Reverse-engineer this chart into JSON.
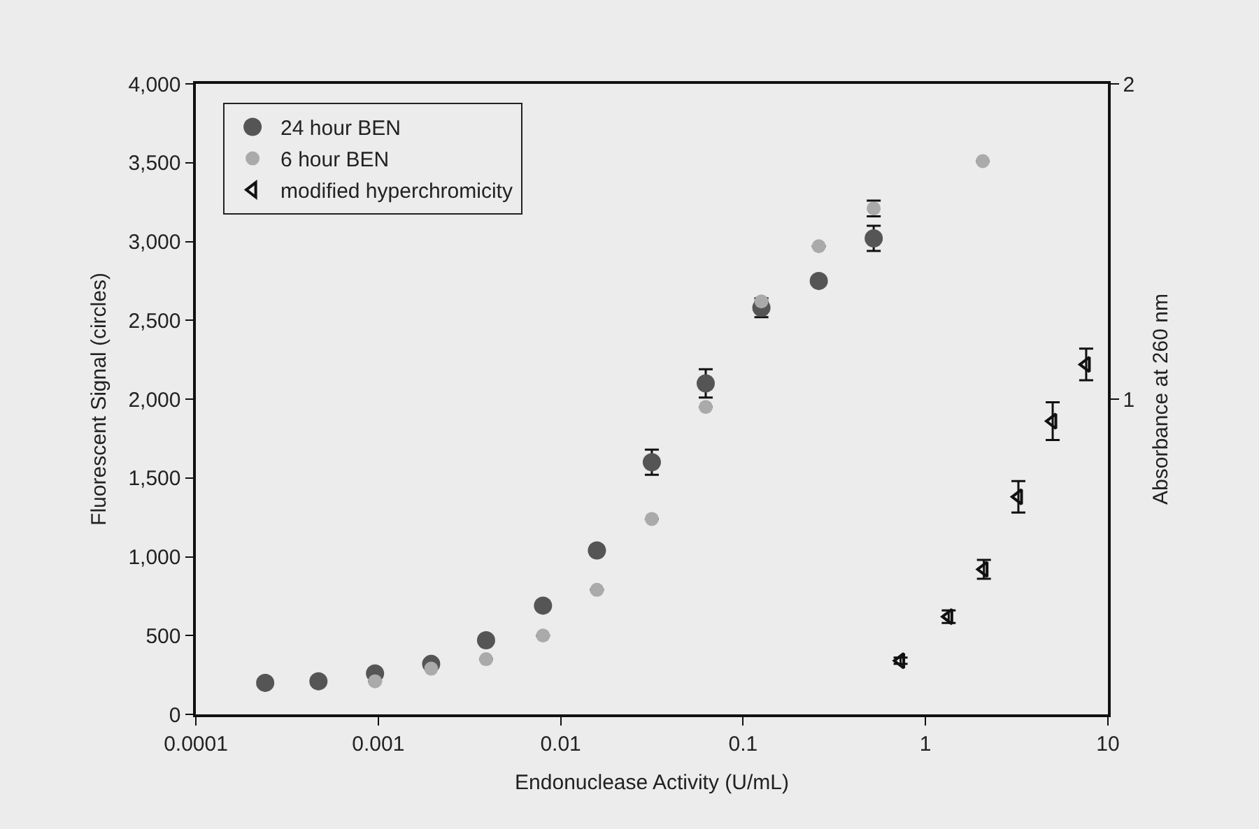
{
  "chart_data": {
    "type": "scatter",
    "xlabel": "Endonuclease Activity (U/mL)",
    "ylabel": "Fluorescent Signal (circles)",
    "y2label": "Absorbance at 260 nm",
    "log": "x",
    "xlim": [
      0.0001,
      10
    ],
    "xticks": [
      0.0001,
      0.001,
      0.01,
      0.1,
      1,
      10
    ],
    "ylim": [
      0,
      4000
    ],
    "yticks": [
      0,
      500,
      {
        "value": 1000,
        "label": "1,000"
      },
      {
        "value": 1500,
        "label": "1,500"
      },
      {
        "value": 2000,
        "label": "2,000"
      },
      {
        "value": 2500,
        "label": "2,500"
      },
      {
        "value": 3000,
        "label": "3,000"
      },
      {
        "value": 3500,
        "label": "3,500"
      },
      {
        "value": 4000,
        "label": "4,000"
      }
    ],
    "y2lim": [
      0,
      2
    ],
    "y2ticks": [
      1,
      2
    ],
    "grid": false,
    "legend": "top left",
    "series": [
      {
        "name": "24 hour BEN",
        "color": "#555555",
        "marker": "circle",
        "x": [
          0.00024,
          0.00047,
          0.00096,
          0.00195,
          0.0039,
          0.008,
          0.0158,
          0.0316,
          0.0624,
          0.126,
          0.26,
          0.52
        ],
        "values": [
          200,
          210,
          260,
          320,
          470,
          690,
          1040,
          1600,
          2100,
          2580,
          2750,
          3020
        ],
        "errors": [
          null,
          null,
          null,
          null,
          null,
          null,
          null,
          80,
          90,
          60,
          null,
          80
        ]
      },
      {
        "name": "6 hour BEN",
        "color": "#aaaaaa",
        "marker": "circle",
        "x": [
          0.00096,
          0.00195,
          0.0039,
          0.008,
          0.0158,
          0.0316,
          0.0624,
          0.126,
          0.26,
          0.52,
          2.06
        ],
        "values": [
          210,
          290,
          350,
          500,
          790,
          1240,
          1950,
          2620,
          2970,
          3210,
          3510
        ],
        "errors": [
          null,
          null,
          null,
          null,
          null,
          null,
          null,
          null,
          null,
          50,
          null
        ]
      },
      {
        "name": "modified hyperchromicity",
        "color": "#111111",
        "marker": "triangle",
        "axis": "y2",
        "x": [
          0.73,
          1.34,
          2.09,
          3.23,
          4.98,
          7.6
        ],
        "values": [
          0.17,
          0.31,
          0.46,
          0.69,
          0.93,
          1.11
        ],
        "errors": [
          0.01,
          0.02,
          0.03,
          0.05,
          0.06,
          0.05
        ]
      }
    ]
  }
}
